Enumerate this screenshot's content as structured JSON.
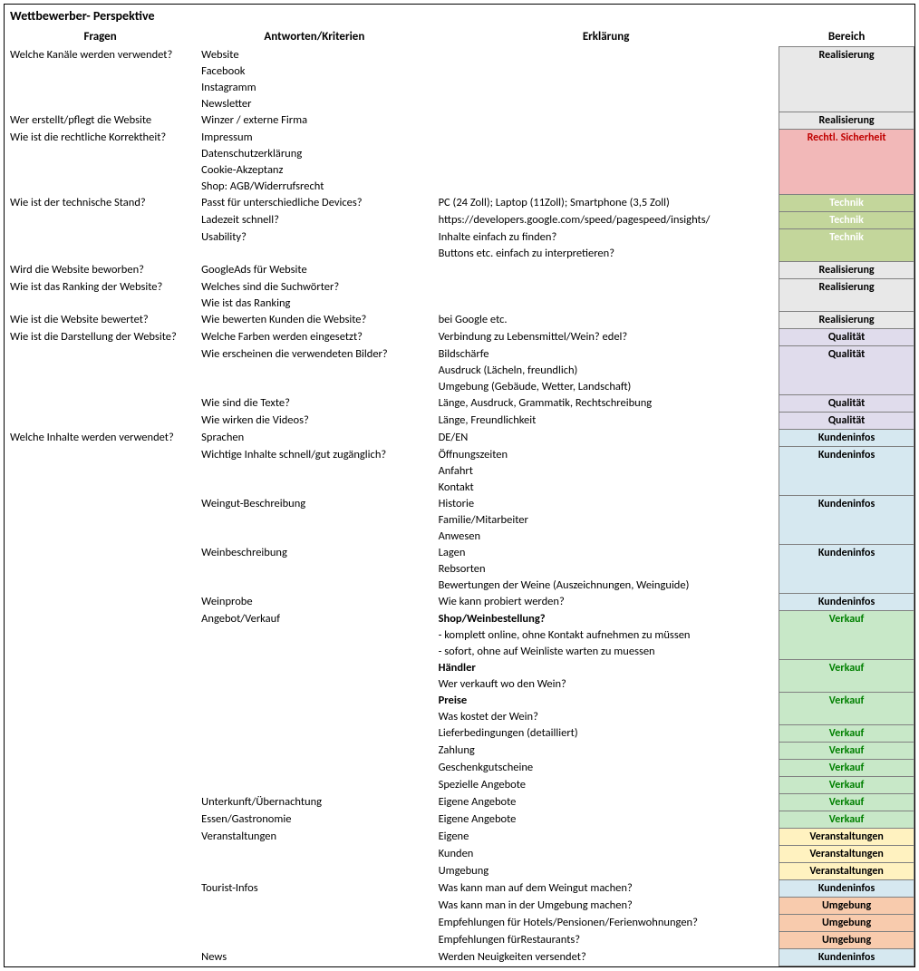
{
  "title": "Wettbewerber- Perspektive",
  "headers": {
    "c1": "Fragen",
    "c2": "Antworten/Kriterien",
    "c3": "Erklärung",
    "c4": "Bereich"
  },
  "categories": {
    "realisierung": {
      "label": "Realisierung",
      "bg": "#e8e8e8",
      "fg": "#000000"
    },
    "rechtl": {
      "label": "Rechtl. Sicherheit",
      "bg": "#f2b8b8",
      "fg": "#c00000"
    },
    "technik": {
      "label": "Technik",
      "bg": "#c3d69b",
      "fg": "#ffffff"
    },
    "qualitaet": {
      "label": "Qualität",
      "bg": "#e0dcec",
      "fg": "#000000"
    },
    "kundeninfos": {
      "label": "Kundeninfos",
      "bg": "#d6e8f0",
      "fg": "#000000"
    },
    "verkauf": {
      "label": "Verkauf",
      "bg": "#c8e8c8",
      "fg": "#008000"
    },
    "veranst": {
      "label": "Veranstaltungen",
      "bg": "#fff2c0",
      "fg": "#000000"
    },
    "umgebung": {
      "label": "Umgebung",
      "bg": "#f8cbad",
      "fg": "#000000"
    }
  },
  "rows": [
    {
      "q": "Welche Kanäle werden verwendet?",
      "a": "Website",
      "e": "",
      "cat": "realisierung",
      "span": 4
    },
    {
      "q": "",
      "a": "Facebook",
      "e": ""
    },
    {
      "q": "",
      "a": "Instagramm",
      "e": ""
    },
    {
      "q": "",
      "a": "Newsletter",
      "e": ""
    },
    {
      "q": "Wer erstellt/pflegt die Website",
      "a": "Winzer / externe Firma",
      "e": "",
      "cat": "realisierung",
      "span": 1
    },
    {
      "q": "Wie ist die rechtliche Korrektheit?",
      "a": "Impressum",
      "e": "",
      "cat": "rechtl",
      "span": 4
    },
    {
      "q": "",
      "a": "Datenschutzerklärung",
      "e": ""
    },
    {
      "q": "",
      "a": "Cookie-Akzeptanz",
      "e": ""
    },
    {
      "q": "",
      "a": "Shop: AGB/Widerrufsrecht",
      "e": ""
    },
    {
      "q": "Wie ist der technische Stand?",
      "a": "Passt für unterschiedliche Devices?",
      "e": "PC (24 Zoll); Laptop (11Zoll); Smartphone (3,5 Zoll)",
      "cat": "technik",
      "span": 1
    },
    {
      "q": "",
      "a": "Ladezeit schnell?",
      "e": "https://developers.google.com/speed/pagespeed/insights/",
      "cat": "technik",
      "span": 1
    },
    {
      "q": "",
      "a": "Usability?",
      "e": "Inhalte einfach zu finden?",
      "cat": "technik",
      "span": 2
    },
    {
      "q": "",
      "a": "",
      "e": "Buttons etc. einfach zu interpretieren?"
    },
    {
      "q": "Wird die Website beworben?",
      "a": "GoogleAds für Website",
      "e": "",
      "cat": "realisierung",
      "span": 1
    },
    {
      "q": "Wie ist das Ranking der Website?",
      "a": "Welches sind die Suchwörter?",
      "e": "",
      "cat": "realisierung",
      "span": 2
    },
    {
      "q": "",
      "a": "Wie ist das Ranking",
      "e": ""
    },
    {
      "q": "Wie ist die Website bewertet?",
      "a": "Wie bewerten Kunden die Website?",
      "e": "bei Google etc.",
      "cat": "realisierung",
      "span": 1
    },
    {
      "q": "Wie ist die Darstellung der Website?",
      "a": "Welche Farben werden eingesetzt?",
      "e": "Verbindung zu Lebensmittel/Wein? edel?",
      "cat": "qualitaet",
      "span": 1
    },
    {
      "q": "",
      "a": "Wie erscheinen die verwendeten Bilder?",
      "e": "Bildschärfe",
      "cat": "qualitaet",
      "span": 3
    },
    {
      "q": "",
      "a": "",
      "e": "Ausdruck (Lächeln, freundlich)"
    },
    {
      "q": "",
      "a": "",
      "e": "Umgebung (Gebäude, Wetter, Landschaft)"
    },
    {
      "q": "",
      "a": "Wie sind die Texte?",
      "e": "Länge, Ausdruck, Grammatik, Rechtschreibung",
      "cat": "qualitaet",
      "span": 1
    },
    {
      "q": "",
      "a": "Wie wirken die Videos?",
      "e": "Länge, Freundlichkeit",
      "cat": "qualitaet",
      "span": 1
    },
    {
      "q": "Welche Inhalte werden verwendet?",
      "a": "Sprachen",
      "e": "DE/EN",
      "cat": "kundeninfos",
      "span": 1
    },
    {
      "q": "",
      "a": "Wichtige Inhalte schnell/gut zugänglich?",
      "e": "Öffnungszeiten",
      "cat": "kundeninfos",
      "span": 3
    },
    {
      "q": "",
      "a": "",
      "e": "Anfahrt"
    },
    {
      "q": "",
      "a": "",
      "e": "Kontakt"
    },
    {
      "q": "",
      "a": "Weingut-Beschreibung",
      "e": "Historie",
      "cat": "kundeninfos",
      "span": 3
    },
    {
      "q": "",
      "a": "",
      "e": "Familie/Mitarbeiter"
    },
    {
      "q": "",
      "a": "",
      "e": "Anwesen"
    },
    {
      "q": "",
      "a": "Weinbeschreibung",
      "e": "Lagen",
      "cat": "kundeninfos",
      "span": 3
    },
    {
      "q": "",
      "a": "",
      "e": "Rebsorten"
    },
    {
      "q": "",
      "a": "",
      "e": "Bewertungen der Weine (Auszeichnungen, Weinguide)"
    },
    {
      "q": "",
      "a": "Weinprobe",
      "e": "Wie kann probiert werden?",
      "cat": "kundeninfos",
      "span": 1
    },
    {
      "q": "",
      "a": "Angebot/Verkauf",
      "e": "Shop/Weinbestellung?",
      "eb": true,
      "cat": "verkauf",
      "span": 3
    },
    {
      "q": "",
      "a": "",
      "e": "- komplett online, ohne Kontakt aufnehmen zu müssen"
    },
    {
      "q": "",
      "a": "",
      "e": "- sofort, ohne auf Weinliste warten zu muessen"
    },
    {
      "q": "",
      "a": "",
      "e": "Händler",
      "eb": true,
      "cat": "verkauf",
      "span": 2
    },
    {
      "q": "",
      "a": "",
      "e": "Wer verkauft wo den Wein?"
    },
    {
      "q": "",
      "a": "",
      "e": "Preise",
      "eb": true,
      "cat": "verkauf",
      "span": 2
    },
    {
      "q": "",
      "a": "",
      "e": "Was kostet der Wein?"
    },
    {
      "q": "",
      "a": "",
      "e": "Lieferbedingungen (detailliert)",
      "cat": "verkauf",
      "span": 1
    },
    {
      "q": "",
      "a": "",
      "e": "Zahlung",
      "cat": "verkauf",
      "span": 1
    },
    {
      "q": "",
      "a": "",
      "e": "Geschenkgutscheine",
      "cat": "verkauf",
      "span": 1
    },
    {
      "q": "",
      "a": "",
      "e": "Spezielle Angebote",
      "cat": "verkauf",
      "span": 1
    },
    {
      "q": "",
      "a": "Unterkunft/Übernachtung",
      "e": "Eigene Angebote",
      "cat": "verkauf",
      "span": 1
    },
    {
      "q": "",
      "a": "Essen/Gastronomie",
      "e": "Eigene Angebote",
      "cat": "verkauf",
      "span": 1
    },
    {
      "q": "",
      "a": "Veranstaltungen",
      "e": "Eigene",
      "cat": "veranst",
      "span": 1
    },
    {
      "q": "",
      "a": "",
      "e": "Kunden",
      "cat": "veranst",
      "span": 1
    },
    {
      "q": "",
      "a": "",
      "e": "Umgebung",
      "cat": "veranst",
      "span": 1
    },
    {
      "q": "",
      "a": "Tourist-Infos",
      "e": "Was kann man auf dem Weingut machen?",
      "cat": "kundeninfos",
      "span": 1
    },
    {
      "q": "",
      "a": "",
      "e": "Was kann man in der Umgebung machen?",
      "cat": "umgebung",
      "span": 1
    },
    {
      "q": "",
      "a": "",
      "e": "Empfehlungen für Hotels/Pensionen/Ferienwohnungen?",
      "cat": "umgebung",
      "span": 1
    },
    {
      "q": "",
      "a": "",
      "e": "Empfehlungen fürRestaurants?",
      "cat": "umgebung",
      "span": 1
    },
    {
      "q": "",
      "a": "News",
      "e": "Werden Neuigkeiten versendet?",
      "cat": "kundeninfos",
      "span": 1
    }
  ]
}
